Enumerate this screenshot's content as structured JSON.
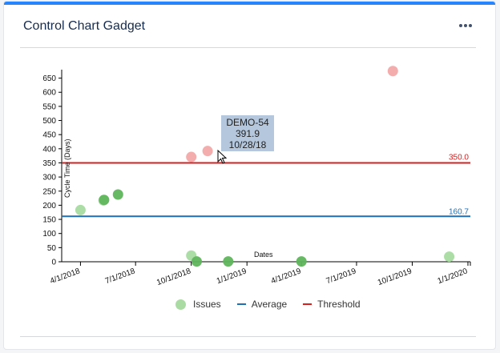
{
  "gadget": {
    "title": "Control Chart Gadget",
    "menu_icon": "more-icon"
  },
  "chart_data": {
    "type": "scatter",
    "title": "",
    "xlabel": "Dates",
    "ylabel": "Cycle Time (Days)",
    "ylim": [
      0,
      680
    ],
    "yticks": [
      0,
      50,
      100,
      150,
      200,
      250,
      300,
      350,
      400,
      450,
      500,
      550,
      600,
      650
    ],
    "xlim": [
      "2018-03-01",
      "2020-01-05"
    ],
    "xticks": [
      {
        "label": "4/1/2018",
        "date": "2018-04-01"
      },
      {
        "label": "7/1/2018",
        "date": "2018-07-01"
      },
      {
        "label": "10/1/2018",
        "date": "2018-10-01"
      },
      {
        "label": "1/1/2019",
        "date": "2019-01-01"
      },
      {
        "label": "4/1/2019",
        "date": "2019-04-01"
      },
      {
        "label": "7/1/2019",
        "date": "2019-07-01"
      },
      {
        "label": "10/1/2019",
        "date": "2019-10-01"
      },
      {
        "label": "1/1/2020",
        "date": "2020-01-01"
      }
    ],
    "series": [
      {
        "name": "Issues",
        "points": [
          {
            "date": "2018-04-01",
            "value": 183,
            "kind": "normal"
          },
          {
            "date": "2018-05-09",
            "value": 217,
            "kind": "normal"
          },
          {
            "date": "2018-05-10",
            "value": 219,
            "kind": "dark"
          },
          {
            "date": "2018-06-02",
            "value": 238,
            "kind": "dark"
          },
          {
            "date": "2018-10-01",
            "value": 371,
            "kind": "outlier"
          },
          {
            "date": "2018-10-28",
            "value": 391.9,
            "kind": "outlier"
          },
          {
            "date": "2018-10-01",
            "value": 22,
            "kind": "normal"
          },
          {
            "date": "2018-10-10",
            "value": 1,
            "kind": "dark"
          },
          {
            "date": "2018-12-01",
            "value": 1,
            "kind": "dark"
          },
          {
            "date": "2019-04-01",
            "value": 1,
            "kind": "dark"
          },
          {
            "date": "2019-08-30",
            "value": 675,
            "kind": "outlier"
          },
          {
            "date": "2019-12-01",
            "value": 18,
            "kind": "normal"
          }
        ]
      }
    ],
    "average": 160.7,
    "threshold": 350.0,
    "average_label": "160.7",
    "threshold_label": "350.0",
    "colors": {
      "normal": "#a9dba2",
      "dark": "#5fb55c",
      "outlier": "#f2a9a9",
      "average": "#1f6fb5",
      "threshold": "#d62020"
    }
  },
  "legend": {
    "issues": "Issues",
    "average": "Average",
    "threshold": "Threshold"
  },
  "tooltip": {
    "key": "DEMO-54",
    "value": "391.9",
    "date": "10/28/18"
  }
}
